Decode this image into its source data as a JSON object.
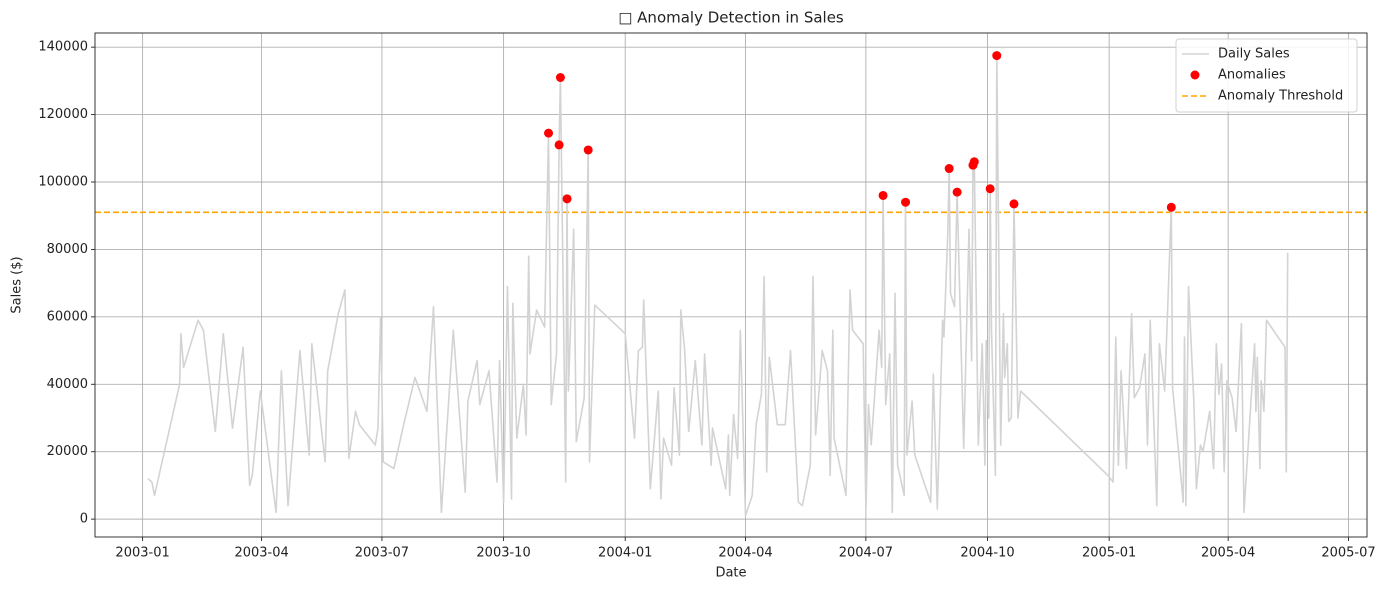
{
  "chart_data": {
    "type": "line",
    "title": "□ Anomaly Detection in Sales",
    "x_label": "Date",
    "y_label": "Sales ($)",
    "xlim": [
      -36,
      926
    ],
    "ylim": [
      -5300,
      144200
    ],
    "xticks": [
      {
        "value": 0,
        "label": "2003-01"
      },
      {
        "value": 90,
        "label": "2003-04"
      },
      {
        "value": 181,
        "label": "2003-07"
      },
      {
        "value": 273,
        "label": "2003-10"
      },
      {
        "value": 365,
        "label": "2004-01"
      },
      {
        "value": 456,
        "label": "2004-04"
      },
      {
        "value": 547,
        "label": "2004-07"
      },
      {
        "value": 639,
        "label": "2004-10"
      },
      {
        "value": 731,
        "label": "2005-01"
      },
      {
        "value": 821,
        "label": "2005-04"
      },
      {
        "value": 912,
        "label": "2005-07"
      }
    ],
    "yticks": [
      0,
      20000,
      40000,
      60000,
      80000,
      100000,
      120000,
      140000
    ],
    "grid": true,
    "legend": "upper right",
    "series": [
      {
        "name": "Daily Sales",
        "type": "line",
        "color": "#d3d3d3",
        "x": [
          4,
          7,
          9,
          28,
          29,
          31,
          42,
          46,
          55,
          61,
          68,
          76,
          81,
          83,
          89,
          101,
          105,
          110,
          119,
          126,
          128,
          138,
          140,
          148,
          153,
          156,
          161,
          164,
          176,
          178,
          180,
          182,
          190,
          198,
          206,
          215,
          220,
          226,
          235,
          244,
          246,
          253,
          255,
          262,
          268,
          270,
          273,
          276,
          279,
          280,
          283,
          288,
          290,
          292,
          293,
          298,
          304,
          307,
          309,
          313,
          315,
          316,
          320,
          321,
          322,
          326,
          328,
          334,
          337,
          338,
          342,
          365,
          372,
          375,
          378,
          379,
          384,
          390,
          392,
          394,
          400,
          402,
          406,
          407,
          410,
          413,
          418,
          423,
          425,
          430,
          431,
          441,
          443,
          444,
          447,
          450,
          452,
          456,
          461,
          464,
          468,
          470,
          472,
          474,
          480,
          486,
          490,
          496,
          499,
          505,
          507,
          509,
          514,
          518,
          520,
          522,
          523,
          532,
          535,
          537,
          545,
          547,
          549,
          551,
          557,
          559,
          560,
          562,
          565,
          567,
          569,
          571,
          576,
          577,
          578,
          582,
          584,
          596,
          598,
          601,
          605,
          606,
          609,
          610,
          611,
          614,
          616,
          621,
          625,
          627,
          628,
          629,
          632,
          635,
          637,
          638,
          640,
          641,
          642,
          645,
          646,
          649,
          651,
          652,
          654,
          655,
          657,
          659,
          662,
          664,
          730,
          734,
          736,
          738,
          740,
          744,
          748,
          750,
          754,
          758,
          760,
          762,
          767,
          769,
          773,
          778,
          779,
          784,
          787,
          788,
          789,
          791,
          795,
          797,
          800,
          802,
          807,
          810,
          812,
          814,
          816,
          818,
          820,
          824,
          827,
          831,
          833,
          841,
          842,
          843,
          845,
          846,
          848,
          850,
          864,
          865,
          866
        ],
        "values": [
          12000,
          11000,
          7000,
          40000,
          55000,
          45000,
          59000,
          56000,
          26000,
          55000,
          27000,
          51000,
          10000,
          13000,
          38000,
          2000,
          44000,
          4000,
          50000,
          19000,
          52000,
          17000,
          44000,
          61000,
          68000,
          18000,
          32000,
          28000,
          22000,
          27000,
          60000,
          17000,
          15000,
          29000,
          42000,
          32000,
          63000,
          2000,
          56000,
          8000,
          35000,
          47000,
          34000,
          44000,
          11000,
          47000,
          5000,
          69000,
          6000,
          64000,
          24000,
          40000,
          25000,
          78000,
          49000,
          62000,
          57000,
          114500,
          34000,
          49000,
          111000,
          131000,
          11000,
          95000,
          38000,
          86000,
          23000,
          36000,
          109500,
          17000,
          63500,
          55000,
          24000,
          50000,
          51000,
          65000,
          9000,
          38000,
          6000,
          24000,
          16000,
          39000,
          19000,
          62000,
          50000,
          26000,
          47000,
          22000,
          49000,
          16000,
          27000,
          9000,
          25000,
          7000,
          31000,
          18000,
          56000,
          1000,
          7000,
          28000,
          37000,
          72000,
          14000,
          48000,
          28000,
          28000,
          50000,
          5000,
          4000,
          16000,
          72000,
          25000,
          50000,
          44000,
          13000,
          56000,
          24000,
          7000,
          68000,
          56000,
          52000,
          3000,
          34000,
          22000,
          56000,
          45000,
          96000,
          34000,
          49000,
          2000,
          67000,
          16000,
          7000,
          94000,
          19000,
          35000,
          19000,
          5000,
          43000,
          3000,
          59000,
          54000,
          85000,
          104000,
          67000,
          63000,
          97000,
          21000,
          86000,
          47000,
          105000,
          106000,
          22000,
          52000,
          16000,
          53000,
          30000,
          98000,
          56000,
          13000,
          137500,
          22000,
          61000,
          42000,
          52000,
          29000,
          30000,
          93500,
          30000,
          38000,
          13000,
          11000,
          54000,
          16000,
          44000,
          15000,
          61000,
          36000,
          39000,
          49000,
          22000,
          59000,
          4000,
          52000,
          38000,
          92500,
          39000,
          18000,
          5000,
          54000,
          4000,
          69000,
          35000,
          9000,
          22000,
          20000,
          32000,
          15000,
          52000,
          37000,
          46000,
          14000,
          41000,
          36000,
          26000,
          58000,
          2000,
          52000,
          32000,
          48000,
          15000,
          41000,
          32000,
          59000,
          51000,
          14000,
          79000
        ]
      },
      {
        "name": "Anomalies",
        "type": "scatter",
        "color": "#ff0000",
        "x": [
          307,
          315,
          316,
          321,
          337,
          560,
          577,
          610,
          616,
          628,
          629,
          641,
          646,
          659,
          778
        ],
        "values": [
          114500,
          111000,
          131000,
          95000,
          109500,
          96000,
          94000,
          104000,
          97000,
          105000,
          106000,
          98000,
          137500,
          93500,
          92500
        ]
      }
    ],
    "threshold": {
      "name": "Anomaly Threshold",
      "value": 91000,
      "color": "#ffa500"
    }
  }
}
